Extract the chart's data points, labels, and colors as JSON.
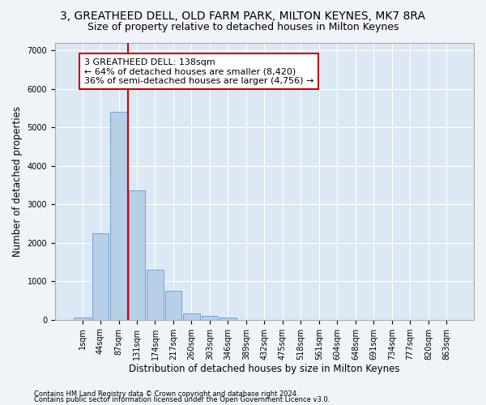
{
  "title": "3, GREATHEED DELL, OLD FARM PARK, MILTON KEYNES, MK7 8RA",
  "subtitle": "Size of property relative to detached houses in Milton Keynes",
  "xlabel": "Distribution of detached houses by size in Milton Keynes",
  "ylabel": "Number of detached properties",
  "footer_line1": "Contains HM Land Registry data © Crown copyright and database right 2024.",
  "footer_line2": "Contains public sector information licensed under the Open Government Licence v3.0.",
  "bar_labels": [
    "1sqm",
    "44sqm",
    "87sqm",
    "131sqm",
    "174sqm",
    "217sqm",
    "260sqm",
    "303sqm",
    "346sqm",
    "389sqm",
    "432sqm",
    "475sqm",
    "518sqm",
    "561sqm",
    "604sqm",
    "648sqm",
    "691sqm",
    "734sqm",
    "777sqm",
    "820sqm",
    "863sqm"
  ],
  "bar_values": [
    50,
    2250,
    5400,
    3350,
    1300,
    750,
    170,
    90,
    50,
    0,
    0,
    0,
    0,
    0,
    0,
    0,
    0,
    0,
    0,
    0,
    0
  ],
  "bar_color": "#b8cfe8",
  "bar_edge_color": "#6699cc",
  "vline_color": "#cc0000",
  "vline_x_index": 2,
  "annotation_text": "3 GREATHEED DELL: 138sqm\n← 64% of detached houses are smaller (8,420)\n36% of semi-detached houses are larger (4,756) →",
  "ylim": [
    0,
    7200
  ],
  "yticks": [
    0,
    1000,
    2000,
    3000,
    4000,
    5000,
    6000,
    7000
  ],
  "fig_bg_color": "#f0f4f8",
  "plot_bg_color": "#dde8f5",
  "grid_color": "#ffffff",
  "title_fontsize": 10,
  "subtitle_fontsize": 9,
  "xlabel_fontsize": 8.5,
  "ylabel_fontsize": 8.5,
  "tick_fontsize": 7,
  "annotation_fontsize": 8,
  "footer_fontsize": 6
}
